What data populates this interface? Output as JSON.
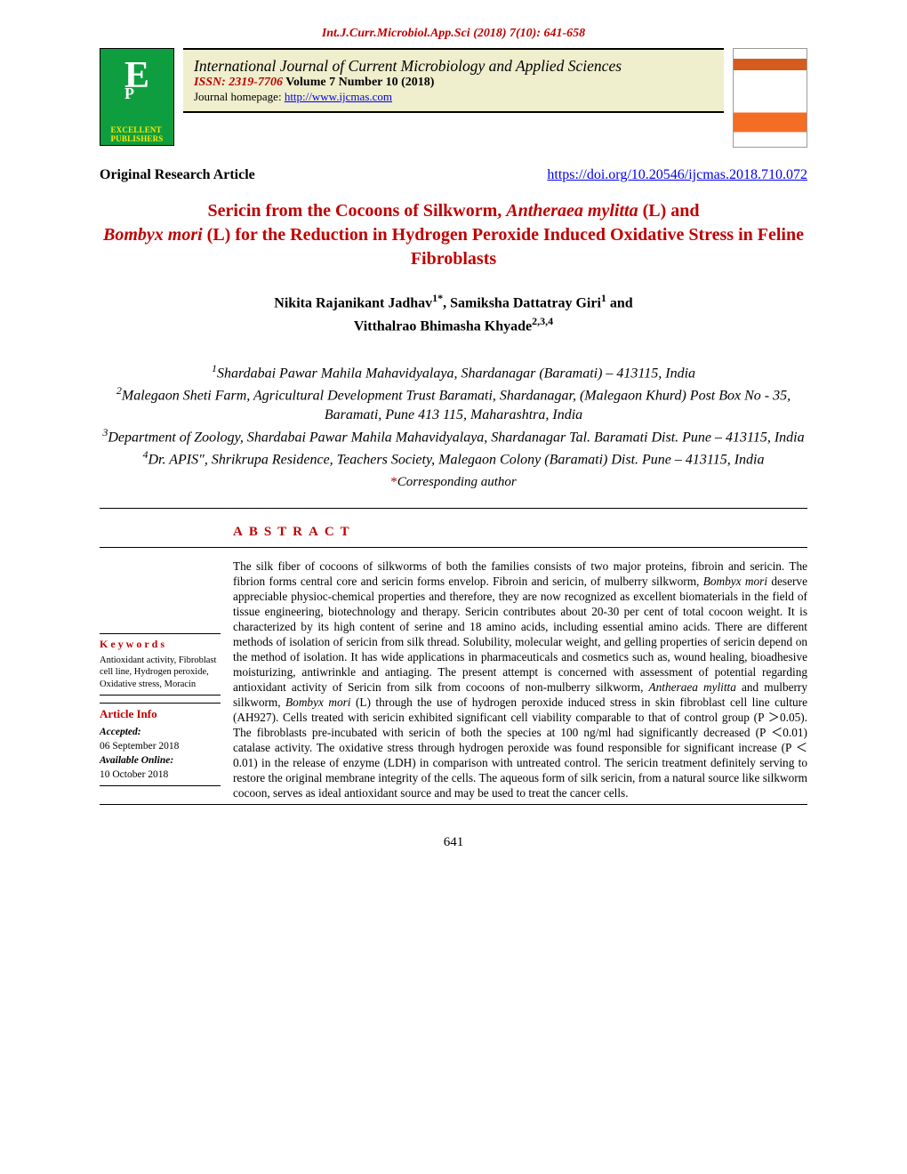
{
  "header": {
    "citation": "Int.J.Curr.Microbiol.App.Sci (2018) 7(10): 641-658",
    "journal_title": "International Journal of Current Microbiology and Applied Sciences",
    "issn": "ISSN: 2319-7706",
    "volume": " Volume 7 Number 10 (2018)",
    "homepage_label": "Journal homepage: ",
    "homepage_url": "http://www.ijcmas.com",
    "logo": {
      "letter": "E",
      "subletter": "P",
      "line1": "EXCELLENT",
      "line2": "PUBLISHERS"
    }
  },
  "article_meta": {
    "type": "Original Research Article",
    "doi": "https://doi.org/10.20546/ijcmas.2018.710.072"
  },
  "title": {
    "prefix": "Sericin from the Cocoons of Silkworm, ",
    "italic1": "Antheraea mylitta",
    "mid1": " (L) and ",
    "italic2": "Bombyx mori",
    "suffix": " (L) for the Reduction in Hydrogen Peroxide Induced Oxidative Stress in Feline Fibroblasts"
  },
  "authors": {
    "a1_name": "Nikita Rajanikant Jadhav",
    "a1_sup": "1*",
    "sep1": ", ",
    "a2_name": "Samiksha Dattatray Giri",
    "a2_sup": "1",
    "and": " and ",
    "a3_name": "Vitthalrao Bhimasha Khyade",
    "a3_sup": "2,3,4"
  },
  "affiliations": {
    "l1_sup": "1",
    "l1": "Shardabai Pawar Mahila Mahavidyalaya, Shardanagar (Baramati) – 413115, India",
    "l2_sup": "2",
    "l2": "Malegaon Sheti Farm, Agricultural Development Trust Baramati, Shardanagar, (Malegaon Khurd) Post Box No - 35, Baramati, Pune 413 115, Maharashtra, India",
    "l3_sup": "3",
    "l3": "Department of Zoology, Shardabai Pawar Mahila Mahavidyalaya, Shardanagar Tal. Baramati Dist. Pune – 413115, India",
    "l4_sup": "4",
    "l4": "Dr. APIS\", Shrikrupa Residence, Teachers Society, Malegaon Colony (Baramati) Dist. Pune – 413115, India"
  },
  "corresponding": "Corresponding author",
  "abstract_label": "ABSTRACT",
  "sidebar": {
    "keywords_head": "Keywords",
    "keywords_text": "Antioxidant activity, Fibroblast cell line, Hydrogen peroxide, Oxidative stress, Moracin",
    "article_info_head": "Article Info",
    "accepted_label": "Accepted:",
    "accepted_date": "06 September 2018",
    "available_label": "Available Online:",
    "available_date": "10 October 2018"
  },
  "abstract": {
    "p1a": "The silk fiber of cocoons of silkworms of both the families consists of two major proteins, fibroin and sericin. The fibrion forms central core and sericin forms envelop. Fibroin and sericin, of mulberry silkworm, ",
    "p1_it1": "Bombyx mori",
    "p1b": " deserve appreciable physioc-chemical properties and therefore, they are now recognized as excellent biomaterials in the field of tissue engineering, biotechnology and therapy. Sericin contributes about 20-30 per cent of total cocoon weight. It is characterized by its high content of serine and 18 amino acids, including essential amino acids. There are different methods of isolation of sericin from silk thread. Solubility, molecular weight, and gelling properties of sericin depend on the method of isolation. It has wide applications in pharmaceuticals and cosmetics such as, wound healing, bioadhesive moisturizing, antiwrinkle and antiaging. The present attempt is concerned with assessment of potential regarding antioxidant activity of Sericin from silk from cocoons of non-mulberry silkworm, ",
    "p1_it2": "Antheraea mylitta",
    "p1c": " and mulberry silkworm, ",
    "p1_it3": "Bombyx mori",
    "p1d": " (L) through the use of hydrogen peroxide induced stress in skin fibroblast cell line culture (AH927). Cells treated with sericin exhibited significant cell viability comparable to that of control group (P ＞0.05). The fibroblasts pre-incubated with sericin of both the species at 100 ng/ml had significantly decreased (P ＜0.01) catalase activity. The oxidative stress through hydrogen peroxide was found responsible for significant increase (P ＜0.01) in the release of enzyme (LDH) in comparison with untreated control. The sericin treatment definitely serving to restore the original membrane integrity of the cells. The aqueous form of silk sericin, from a natural source like silkworm cocoon, serves as ideal antioxidant source and may be used to treat the cancer cells."
  },
  "page_number": "641",
  "colors": {
    "accent_red": "#c00000",
    "link_blue": "#0000ee",
    "header_bg": "#efeecd",
    "logo_green": "#0f9e3f",
    "logo_yellow": "#ffe800"
  }
}
